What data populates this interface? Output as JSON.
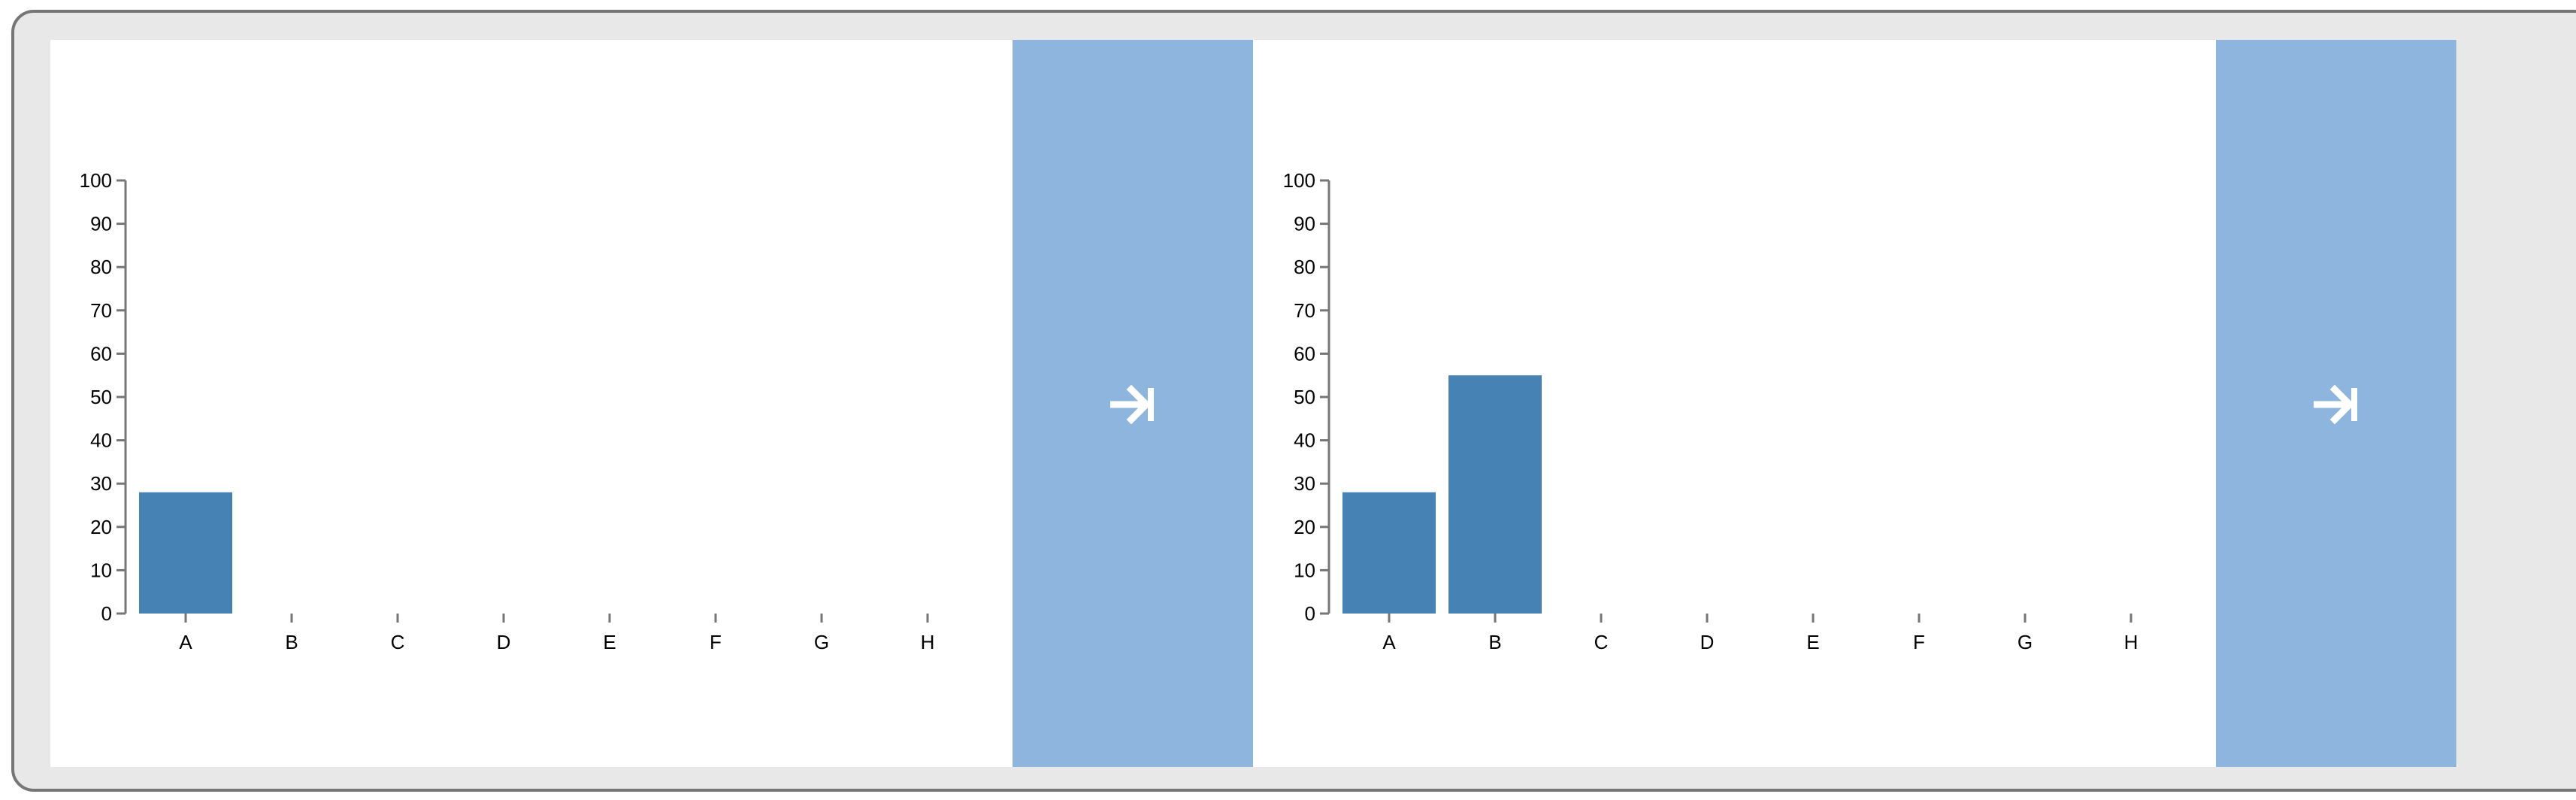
{
  "colors": {
    "bar": "#4682b4",
    "button": "#8db5dd",
    "axis": "#767676",
    "frame": "#e8e8e8"
  },
  "panels": [
    {
      "next_button": {
        "icon": "arrow-right-to-bar-icon"
      }
    },
    {
      "next_button": {
        "icon": "arrow-right-to-bar-icon"
      }
    }
  ],
  "chart_data": [
    {
      "type": "bar",
      "categories": [
        "A",
        "B",
        "C",
        "D",
        "E",
        "F",
        "G",
        "H"
      ],
      "values": [
        28,
        null,
        null,
        null,
        null,
        null,
        null,
        null
      ],
      "yticks": [
        0,
        10,
        20,
        30,
        40,
        50,
        60,
        70,
        80,
        90,
        100
      ],
      "ylim": [
        0,
        100
      ],
      "title": "",
      "xlabel": "",
      "ylabel": "",
      "grid": false
    },
    {
      "type": "bar",
      "categories": [
        "A",
        "B",
        "C",
        "D",
        "E",
        "F",
        "G",
        "H"
      ],
      "values": [
        28,
        55,
        null,
        null,
        null,
        null,
        null,
        null
      ],
      "yticks": [
        0,
        10,
        20,
        30,
        40,
        50,
        60,
        70,
        80,
        90,
        100
      ],
      "ylim": [
        0,
        100
      ],
      "title": "",
      "xlabel": "",
      "ylabel": "",
      "grid": false
    }
  ]
}
